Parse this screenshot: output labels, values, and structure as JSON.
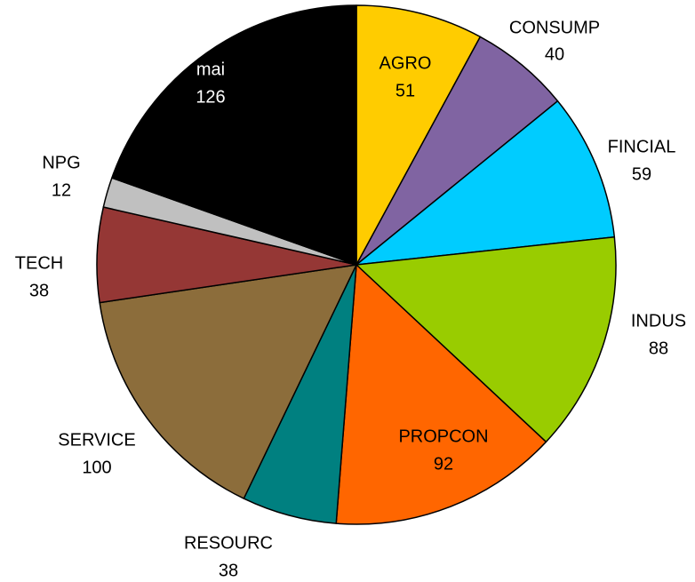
{
  "chart_data": {
    "type": "pie",
    "categories": [
      "AGRO",
      "CONSUMP",
      "FINCIAL",
      "INDUS",
      "PROPCON",
      "RESOURC",
      "SERVICE",
      "TECH",
      "NPG",
      "mai"
    ],
    "values": [
      51,
      40,
      59,
      88,
      92,
      38,
      100,
      38,
      12,
      126
    ],
    "colors": [
      "#ffcc00",
      "#8064a2",
      "#00ccff",
      "#99cc00",
      "#ff6600",
      "#008080",
      "#8c6d3b",
      "#953735",
      "#c0c0c0",
      "#000000"
    ]
  }
}
